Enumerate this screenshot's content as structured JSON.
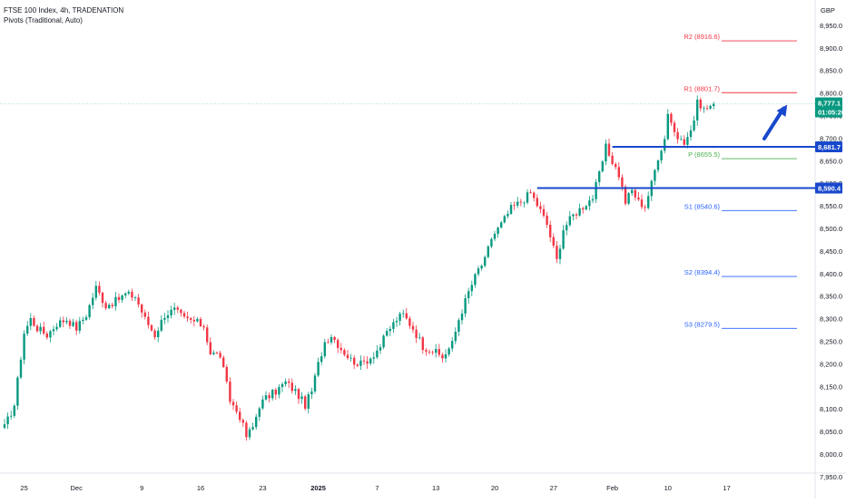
{
  "header": {
    "title": "FTSE 100 Index, 4h, TRADENATION",
    "indicator": "Pivots (Traditional, Auto)",
    "currency": "GBP"
  },
  "colors": {
    "up": "#089981",
    "down": "#f23645",
    "blue": "#1848cc",
    "r_line": "#f23645",
    "p_line": "#4caf50",
    "s_line": "#2962ff",
    "price_tag": "#089981"
  },
  "chart_data": {
    "type": "candlestick",
    "symbol": "FTSE 100 Index",
    "interval": "4h",
    "ylim": [
      7950,
      8970
    ],
    "y_ticks": [
      7950,
      8000,
      8050,
      8100,
      8150,
      8200,
      8250,
      8300,
      8350,
      8400,
      8450,
      8500,
      8550,
      8600,
      8650,
      8700,
      8750,
      8800,
      8850,
      8900,
      8950
    ],
    "y_tick_labels": [
      "7,950.0",
      "8,000.0",
      "8,050.0",
      "8,100.0",
      "8,150.0",
      "8,200.0",
      "8,250.0",
      "8,300.0",
      "8,350.0",
      "8,400.0",
      "8,450.0",
      "8,500.0",
      "8,550.0",
      "8,600.0",
      "8,650.0",
      "8,700.0",
      "8,750.0",
      "8,800.0",
      "8,850.0",
      "8,900.0",
      "8,950.0"
    ],
    "x_labels": [
      "25",
      "Dec",
      "9",
      "16",
      "23",
      "2025",
      "7",
      "13",
      "20",
      "27",
      "Feb",
      "10",
      "17"
    ],
    "x_label_bar": [
      6,
      22,
      42,
      60,
      79,
      96,
      114,
      132,
      150,
      168,
      186,
      203,
      221
    ],
    "close_anchors": [
      [
        0,
        8060
      ],
      [
        3,
        8110
      ],
      [
        6,
        8270
      ],
      [
        8,
        8300
      ],
      [
        10,
        8280
      ],
      [
        13,
        8265
      ],
      [
        16,
        8290
      ],
      [
        19,
        8300
      ],
      [
        22,
        8280
      ],
      [
        25,
        8310
      ],
      [
        28,
        8370
      ],
      [
        31,
        8330
      ],
      [
        34,
        8340
      ],
      [
        37,
        8355
      ],
      [
        40,
        8350
      ],
      [
        43,
        8300
      ],
      [
        46,
        8265
      ],
      [
        49,
        8310
      ],
      [
        52,
        8320
      ],
      [
        55,
        8300
      ],
      [
        58,
        8295
      ],
      [
        61,
        8285
      ],
      [
        63,
        8225
      ],
      [
        66,
        8220
      ],
      [
        69,
        8120
      ],
      [
        72,
        8085
      ],
      [
        74,
        8040
      ],
      [
        76,
        8060
      ],
      [
        78,
        8110
      ],
      [
        80,
        8125
      ],
      [
        83,
        8140
      ],
      [
        86,
        8160
      ],
      [
        89,
        8140
      ],
      [
        92,
        8110
      ],
      [
        94,
        8140
      ],
      [
        96,
        8200
      ],
      [
        98,
        8250
      ],
      [
        100,
        8265
      ],
      [
        103,
        8235
      ],
      [
        106,
        8210
      ],
      [
        109,
        8200
      ],
      [
        112,
        8215
      ],
      [
        115,
        8240
      ],
      [
        117,
        8270
      ],
      [
        120,
        8300
      ],
      [
        122,
        8310
      ],
      [
        125,
        8280
      ],
      [
        128,
        8240
      ],
      [
        131,
        8230
      ],
      [
        134,
        8215
      ],
      [
        137,
        8245
      ],
      [
        139,
        8300
      ],
      [
        142,
        8360
      ],
      [
        145,
        8410
      ],
      [
        147,
        8430
      ],
      [
        149,
        8480
      ],
      [
        152,
        8510
      ],
      [
        155,
        8545
      ],
      [
        158,
        8560
      ],
      [
        161,
        8580
      ],
      [
        164,
        8540
      ],
      [
        166,
        8510
      ],
      [
        169,
        8430
      ],
      [
        171,
        8500
      ],
      [
        174,
        8530
      ],
      [
        177,
        8550
      ],
      [
        180,
        8570
      ],
      [
        182,
        8620
      ],
      [
        184,
        8680
      ],
      [
        186,
        8650
      ],
      [
        188,
        8620
      ],
      [
        190,
        8560
      ],
      [
        192,
        8585
      ],
      [
        194,
        8560
      ],
      [
        196,
        8550
      ],
      [
        198,
        8600
      ],
      [
        200,
        8660
      ],
      [
        202,
        8700
      ],
      [
        203,
        8760
      ],
      [
        205,
        8715
      ],
      [
        207,
        8690
      ],
      [
        209,
        8700
      ],
      [
        211,
        8740
      ],
      [
        212,
        8780
      ],
      [
        214,
        8770
      ],
      [
        216,
        8775
      ],
      [
        217,
        8777.1
      ]
    ],
    "pivots": [
      {
        "label": "R2 (8916.6)",
        "value": 8916.6,
        "color": "#f23645"
      },
      {
        "label": "R1 (8801.7)",
        "value": 8801.7,
        "color": "#f23645"
      },
      {
        "label": "P (8655.5)",
        "value": 8655.5,
        "color": "#4caf50"
      },
      {
        "label": "S1 (8540.6)",
        "value": 8540.6,
        "color": "#2962ff"
      },
      {
        "label": "S2 (8394.4)",
        "value": 8394.4,
        "color": "#2962ff"
      },
      {
        "label": "S3 (8279.5)",
        "value": 8279.5,
        "color": "#2962ff"
      }
    ],
    "support_levels": [
      {
        "value": 8681.7,
        "label": "8,681.7",
        "start_bar": 186
      },
      {
        "value": 8590.4,
        "label": "8,590.4",
        "start_bar": 163
      }
    ],
    "last_price": {
      "value": 8777.1,
      "label": "8,777.1",
      "countdown": "01:05:20"
    },
    "arrow": {
      "from_bar": 220,
      "from_value": 8700,
      "to_bar": 227,
      "to_value": 8775
    }
  }
}
